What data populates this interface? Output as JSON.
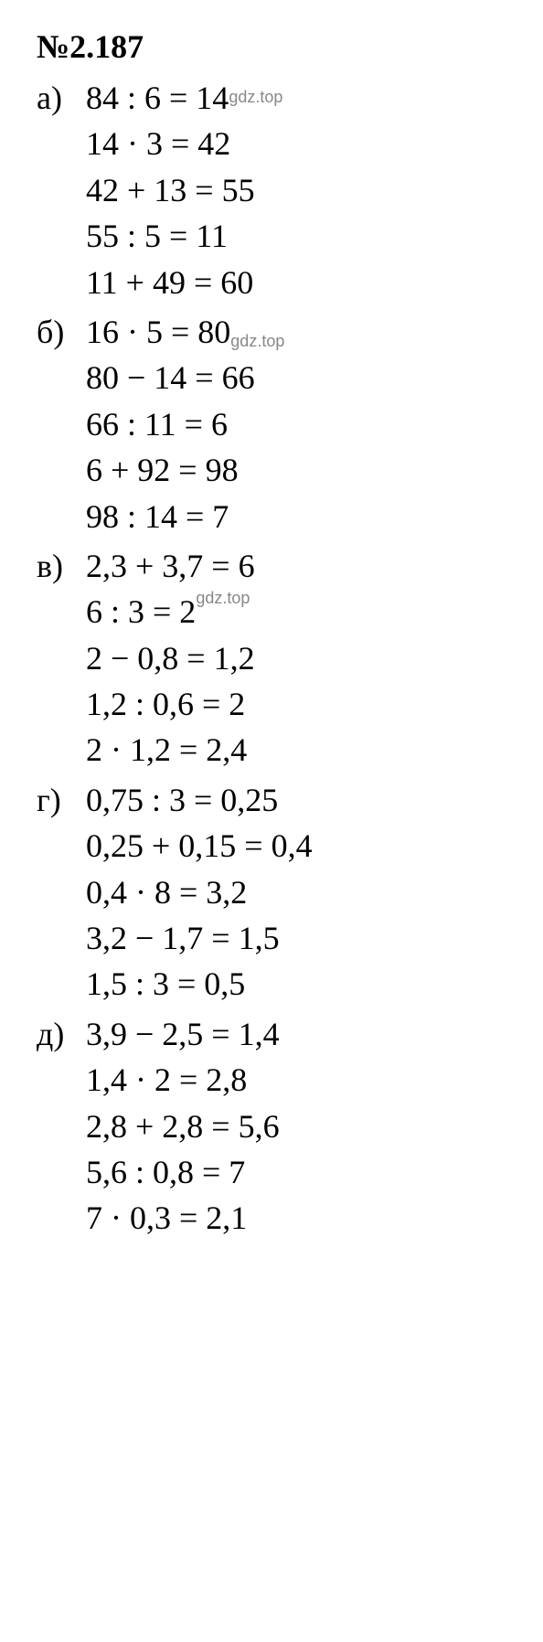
{
  "title": "№2.187",
  "watermark_text": "gdz.top",
  "text_fontsize": 36,
  "title_fontsize": 36,
  "watermark_fontsize": 18,
  "text_color": "#000000",
  "watermark_color": "#888888",
  "background_color": "#ffffff",
  "font_family": "Times New Roman",
  "sections": [
    {
      "label": "а)",
      "has_watermark": true,
      "watermark_line": 0,
      "watermark_position": "after",
      "lines": [
        "84 : 6 = 14",
        "14 · 3 = 42",
        "42 + 13 = 55",
        "55 : 5 = 11",
        "11 + 49 = 60"
      ]
    },
    {
      "label": "б)",
      "has_watermark": true,
      "watermark_line": 0,
      "watermark_position": "after-sub",
      "lines": [
        "16 · 5 = 80",
        "80 − 14 = 66",
        "66 : 11 = 6",
        "6 + 92 = 98",
        "98 : 14 = 7"
      ]
    },
    {
      "label": "в)",
      "has_watermark": true,
      "watermark_line": 1,
      "watermark_position": "after-sup",
      "lines": [
        "2,3 + 3,7 = 6",
        "6 : 3 = 2",
        "2 − 0,8 = 1,2",
        "1,2 : 0,6 = 2",
        "2 · 1,2 = 2,4"
      ]
    },
    {
      "label": "г)",
      "has_watermark": false,
      "lines": [
        "0,75 : 3 = 0,25",
        "0,25 + 0,15 = 0,4",
        "0,4 · 8 = 3,2",
        "3,2 − 1,7 = 1,5",
        "1,5 : 3 = 0,5"
      ]
    },
    {
      "label": "д)",
      "has_watermark": false,
      "lines": [
        "3,9 − 2,5 = 1,4",
        "1,4 · 2 = 2,8",
        "2,8 + 2,8 = 5,6",
        "5,6 : 0,8 = 7",
        "7 · 0,3 = 2,1"
      ]
    }
  ]
}
